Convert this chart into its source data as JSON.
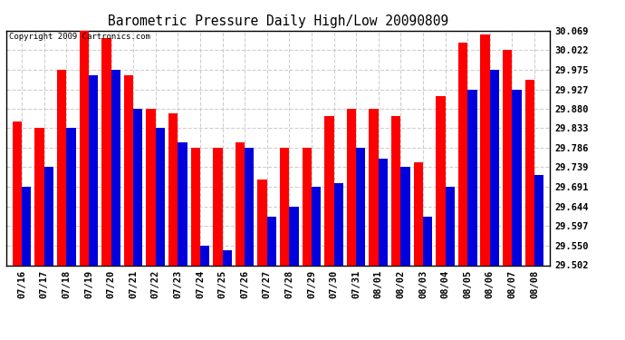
{
  "title": "Barometric Pressure Daily High/Low 20090809",
  "copyright": "Copyright 2009 Cartronics.com",
  "dates": [
    "07/16",
    "07/17",
    "07/18",
    "07/19",
    "07/20",
    "07/21",
    "07/22",
    "07/23",
    "07/24",
    "07/25",
    "07/26",
    "07/27",
    "07/28",
    "07/29",
    "07/30",
    "07/31",
    "08/01",
    "08/02",
    "08/03",
    "08/04",
    "08/05",
    "08/06",
    "08/07",
    "08/08"
  ],
  "highs": [
    29.85,
    29.833,
    29.975,
    30.069,
    30.052,
    29.96,
    29.88,
    29.87,
    29.786,
    29.786,
    29.8,
    29.71,
    29.786,
    29.786,
    29.862,
    29.88,
    29.88,
    29.862,
    29.75,
    29.91,
    30.04,
    30.06,
    30.022,
    29.95
  ],
  "lows": [
    29.691,
    29.739,
    29.833,
    29.96,
    29.975,
    29.88,
    29.833,
    29.8,
    29.55,
    29.538,
    29.786,
    29.62,
    29.644,
    29.691,
    29.7,
    29.786,
    29.76,
    29.739,
    29.62,
    29.691,
    29.927,
    29.975,
    29.927,
    29.72
  ],
  "high_color": "#ff0000",
  "low_color": "#0000dd",
  "bg_color": "#ffffff",
  "grid_color": "#bbbbbb",
  "yticks": [
    29.502,
    29.55,
    29.597,
    29.644,
    29.691,
    29.739,
    29.786,
    29.833,
    29.88,
    29.927,
    29.975,
    30.022,
    30.069
  ],
  "ymin": 29.502,
  "ymax": 30.069,
  "figwidth": 6.9,
  "figheight": 3.75,
  "dpi": 100
}
